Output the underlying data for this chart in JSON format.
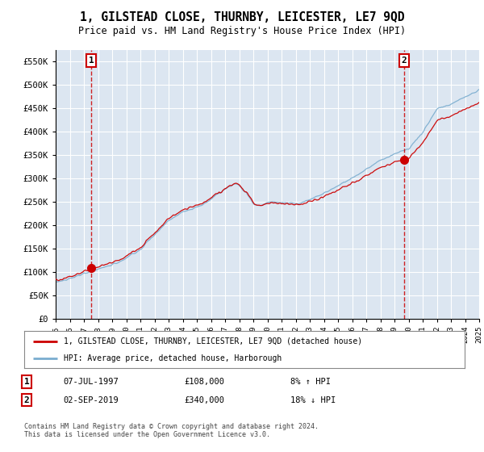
{
  "title": "1, GILSTEAD CLOSE, THURNBY, LEICESTER, LE7 9QD",
  "subtitle": "Price paid vs. HM Land Registry's House Price Index (HPI)",
  "ylabel_ticks": [
    "£0",
    "£50K",
    "£100K",
    "£150K",
    "£200K",
    "£250K",
    "£300K",
    "£350K",
    "£400K",
    "£450K",
    "£500K",
    "£550K"
  ],
  "ytick_values": [
    0,
    50000,
    100000,
    150000,
    200000,
    250000,
    300000,
    350000,
    400000,
    450000,
    500000,
    550000
  ],
  "ylim": [
    0,
    575000
  ],
  "x_start_year": 1995,
  "x_end_year": 2025,
  "plot_bg_color": "#dce6f1",
  "grid_color": "#ffffff",
  "sale1_date": 1997.52,
  "sale1_price": 108000,
  "sale1_label": "1",
  "sale2_date": 2019.67,
  "sale2_price": 340000,
  "sale2_label": "2",
  "legend_line1": "1, GILSTEAD CLOSE, THURNBY, LEICESTER, LE7 9QD (detached house)",
  "legend_line2": "HPI: Average price, detached house, Harborough",
  "annotation1_date": "07-JUL-1997",
  "annotation1_price": "£108,000",
  "annotation1_hpi": "8% ↑ HPI",
  "annotation2_date": "02-SEP-2019",
  "annotation2_price": "£340,000",
  "annotation2_hpi": "18% ↓ HPI",
  "footer": "Contains HM Land Registry data © Crown copyright and database right 2024.\nThis data is licensed under the Open Government Licence v3.0.",
  "line_color_red": "#cc0000",
  "line_color_blue": "#7aadcf",
  "dot_color": "#cc0000",
  "vline_color": "#cc0000",
  "box_color": "#cc0000"
}
